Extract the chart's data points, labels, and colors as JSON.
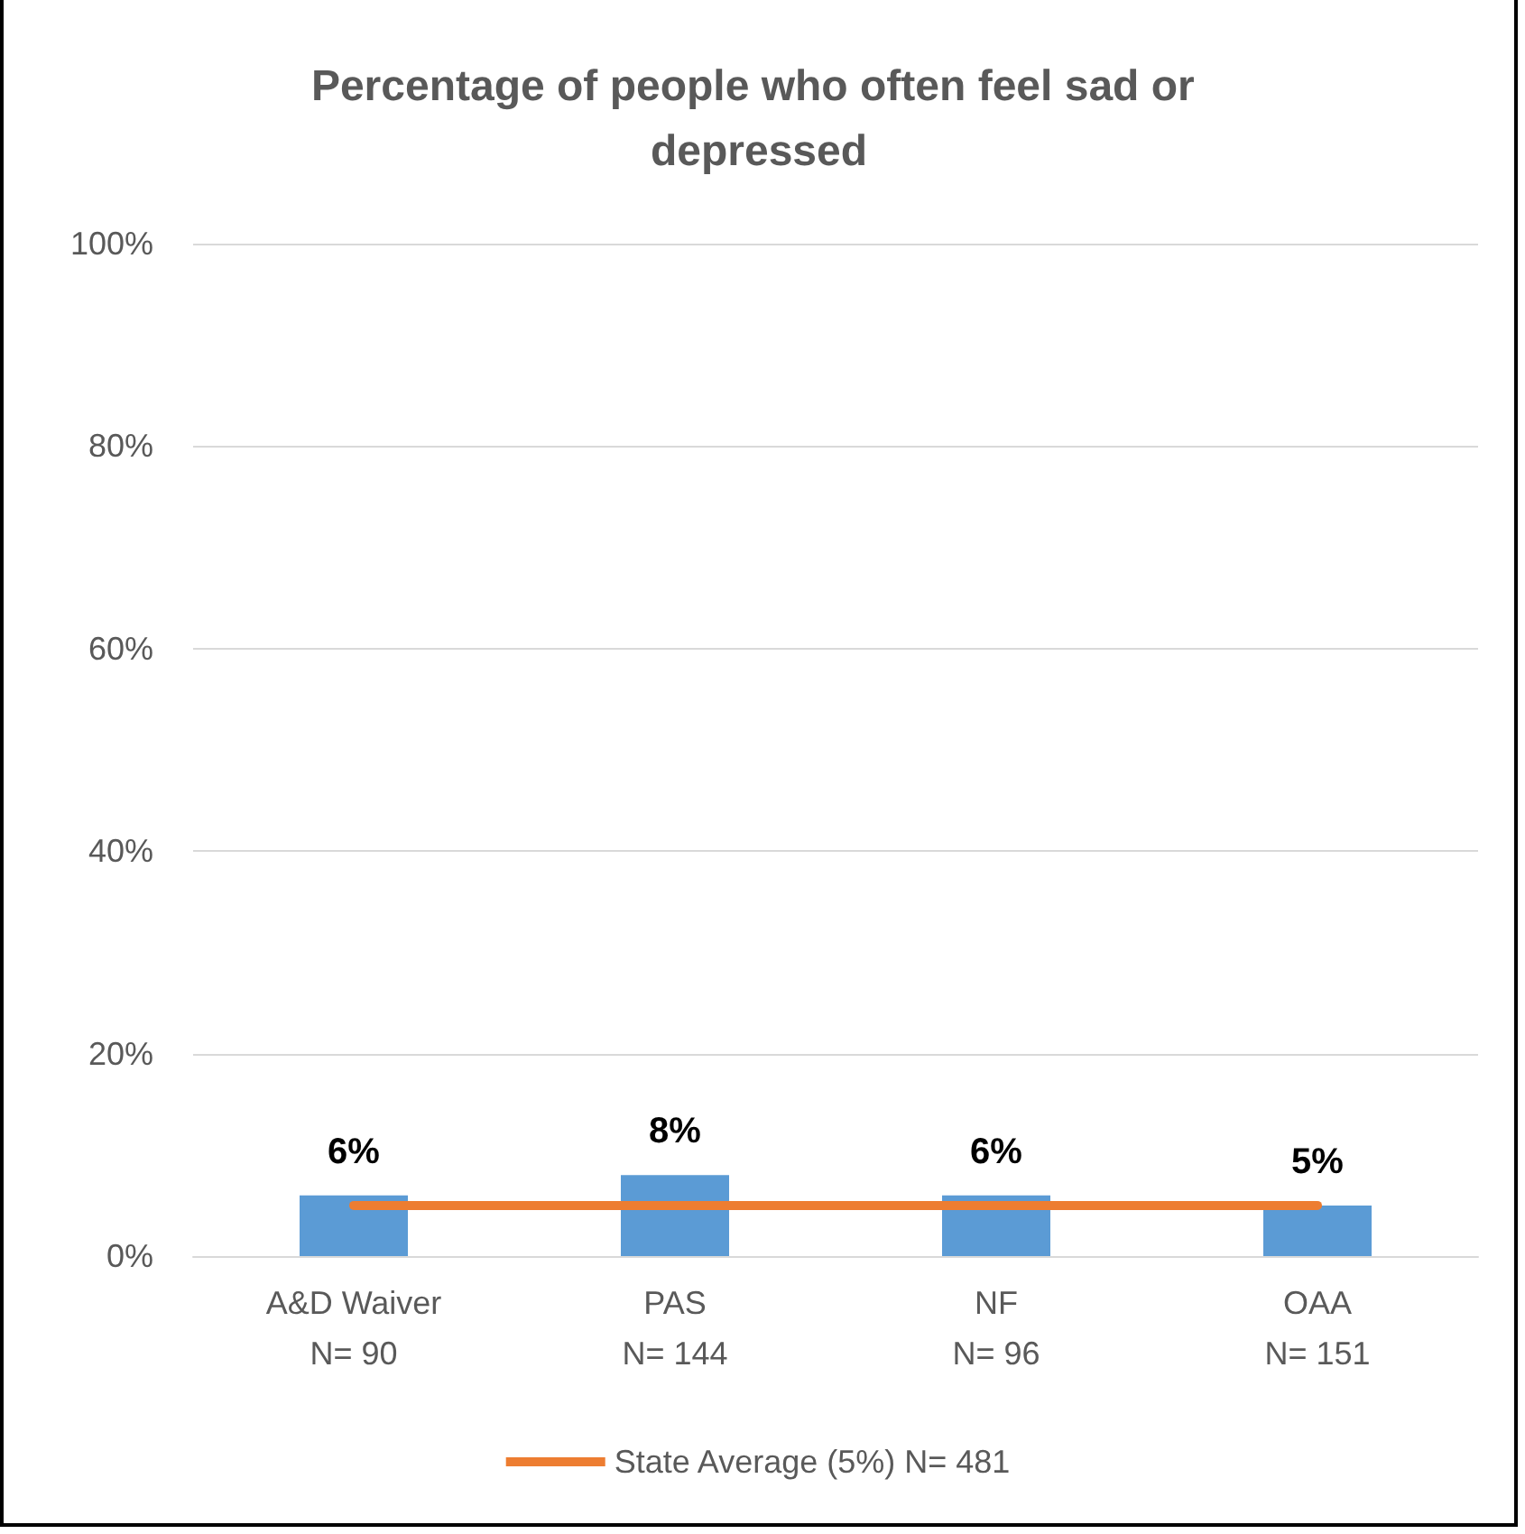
{
  "chart_data": {
    "type": "bar",
    "title": "Percentage of people who often feel sad or depressed",
    "categories": [
      "A&D Waiver\nN= 90",
      "PAS\nN= 144",
      "NF\nN= 96",
      "OAA\nN= 151"
    ],
    "series": [
      {
        "color": "#5b9bd5",
        "values": [
          6,
          8,
          6,
          5
        ],
        "value_labels": [
          "6%",
          "8%",
          "6%",
          "5%"
        ]
      },
      {
        "type": "line",
        "name": "State Average (5%) N= 481",
        "color": "#ed7d31",
        "values": [
          5,
          5,
          5,
          5
        ],
        "marker": "none"
      }
    ],
    "ylim": [
      0,
      100
    ],
    "yticks": [
      {
        "value": 0,
        "label": "0%"
      },
      {
        "value": 20,
        "label": "20%"
      },
      {
        "value": 40,
        "label": "40%"
      },
      {
        "value": 60,
        "label": "60%"
      },
      {
        "value": 80,
        "label": "80%"
      },
      {
        "value": 100,
        "label": "100%"
      }
    ],
    "grid": "y",
    "legend": "bottom"
  }
}
